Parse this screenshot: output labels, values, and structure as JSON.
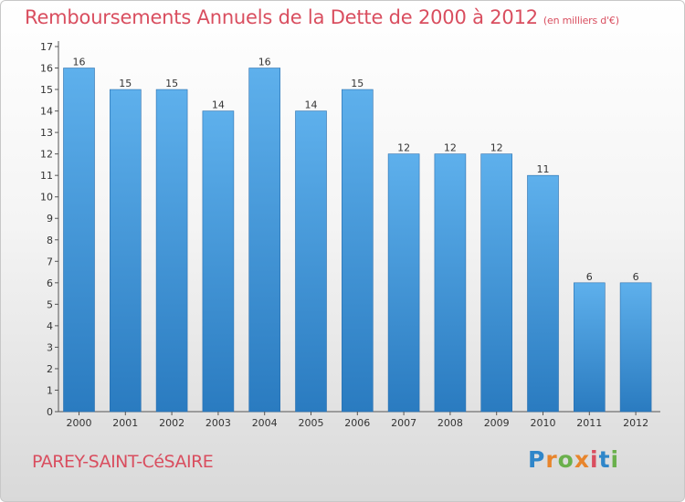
{
  "header": {
    "title": "Remboursements Annuels de la Dette de 2000 à 2012",
    "unit": "(en milliers d'€)"
  },
  "commune_label": "PAREY-SAINT-CéSAIRE",
  "logo": {
    "text": "Proxiti",
    "letter_colors": [
      "#2f86c9",
      "#e8852c",
      "#6ab04c",
      "#e8852c",
      "#d94e5f",
      "#2f86c9",
      "#6ab04c"
    ]
  },
  "colors": {
    "bar_top": "#5eb0ec",
    "bar_bottom": "#2a7bc0",
    "title": "#d94e5f"
  },
  "chart_data": {
    "type": "bar",
    "title": "Remboursements Annuels de la Dette de 2000 à 2012",
    "subtitle": "(en milliers d'€)",
    "xlabel": "",
    "ylabel": "",
    "categories": [
      "2000",
      "2001",
      "2002",
      "2003",
      "2004",
      "2005",
      "2006",
      "2007",
      "2008",
      "2009",
      "2010",
      "2011",
      "2012"
    ],
    "values": [
      16,
      15,
      15,
      14,
      16,
      14,
      15,
      12,
      12,
      12,
      11,
      6,
      6
    ],
    "data_labels": [
      "16",
      "15",
      "15",
      "14",
      "16",
      "14",
      "15",
      "12",
      "12",
      "12",
      "11",
      "6",
      "6"
    ],
    "ylim": [
      0,
      17
    ],
    "yticks": [
      "0",
      "1",
      "2",
      "3",
      "4",
      "5",
      "6",
      "7",
      "8",
      "9",
      "10",
      "11",
      "12",
      "13",
      "14",
      "15",
      "16",
      "17"
    ],
    "grid": false
  }
}
